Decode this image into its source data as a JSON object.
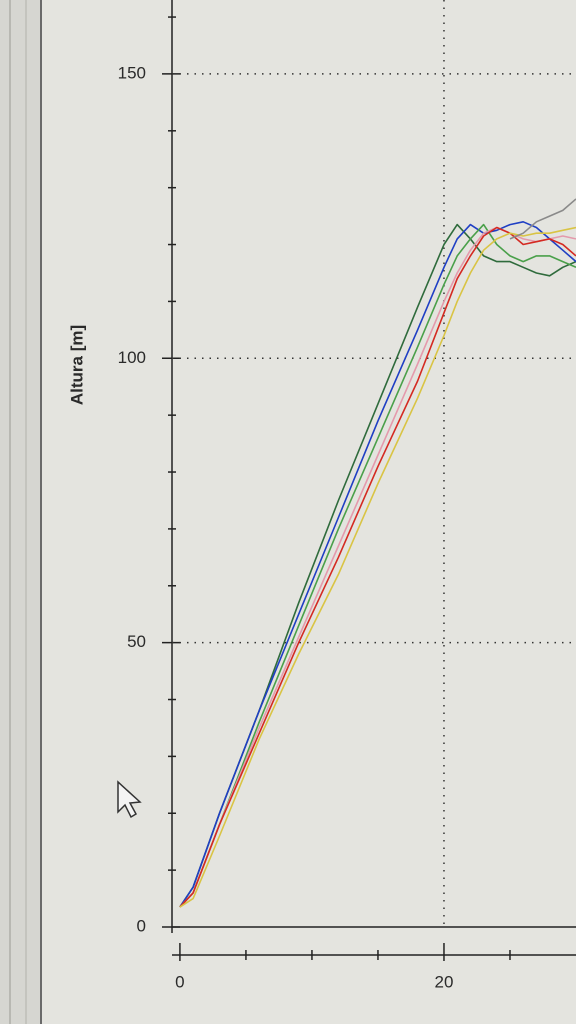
{
  "chart_data": {
    "type": "line",
    "ylabel": "Altura [m]",
    "x": [
      0,
      1,
      3,
      6,
      9,
      12,
      15,
      18,
      20,
      21,
      22,
      23,
      24,
      25,
      26,
      27,
      28,
      29,
      30
    ],
    "series": [
      {
        "color": "#2f6b3c",
        "values": [
          3.5,
          7,
          20,
          38,
          57,
          75,
          92,
          109,
          120,
          123.5,
          121,
          118,
          117,
          117,
          116,
          115,
          114.5,
          116,
          117
        ]
      },
      {
        "color": "#1f3fc4",
        "values": [
          3.5,
          7,
          20,
          38,
          55,
          72,
          89,
          105,
          116,
          121,
          123.5,
          122,
          122.5,
          123.5,
          124,
          123,
          121,
          119,
          117
        ]
      },
      {
        "color": "#4aa04a",
        "values": [
          3.5,
          6,
          18,
          36,
          53,
          70,
          86,
          102,
          113,
          118,
          121,
          123.5,
          120,
          118,
          117,
          118,
          118,
          117,
          116
        ]
      },
      {
        "color": "#e49aac",
        "values": [
          3.5,
          6,
          18,
          35,
          51,
          67,
          83,
          99,
          110,
          115,
          119,
          122,
          123,
          122,
          121,
          120.5,
          121,
          121.5,
          121
        ]
      },
      {
        "color": "#d42a22",
        "values": [
          3.5,
          6,
          18,
          34,
          50,
          65,
          81,
          96,
          108,
          114,
          118,
          121.5,
          123,
          122,
          120,
          120.5,
          121,
          120,
          118
        ]
      },
      {
        "color": "#d9c444",
        "values": [
          3.5,
          5,
          16,
          33,
          48,
          62,
          78,
          93,
          104,
          110,
          115,
          119,
          121,
          122,
          121.5,
          122,
          122,
          122.5,
          123
        ]
      },
      {
        "color": "#8a8a8a",
        "values": [
          null,
          null,
          null,
          null,
          null,
          null,
          null,
          null,
          null,
          null,
          null,
          null,
          null,
          121,
          122,
          124,
          125,
          126,
          128
        ]
      }
    ],
    "xlim": [
      -0.6,
      30
    ],
    "xticks": [
      0,
      20
    ],
    "ylim": [
      0,
      163
    ],
    "yticks": [
      0,
      50,
      100,
      150
    ],
    "grid": true
  }
}
